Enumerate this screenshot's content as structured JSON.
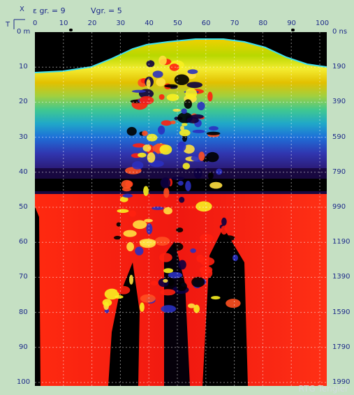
{
  "header": {
    "eps_label": "ε gr. = 9",
    "vgr_label": "Vgr. = 5",
    "corner_x": "X",
    "corner_t": "T"
  },
  "axes": {
    "top_ticks": [
      "0",
      "10",
      "20",
      "30",
      "40",
      "50",
      "60",
      "70",
      "80",
      "90",
      "100"
    ],
    "left_ticks": [
      "0 m",
      "10",
      "20",
      "30",
      "40",
      "50",
      "60",
      "70",
      "80",
      "90",
      "100"
    ],
    "right_ticks": [
      "0 ns",
      "190",
      "390",
      "590",
      "790",
      "990",
      "1190",
      "1390",
      "1590",
      "1790",
      "1990"
    ],
    "marker_positions": [
      12.5,
      90.5
    ]
  },
  "watermark": "RTG Tengler",
  "colors": {
    "background": "#c5e0c3",
    "label": "#1d2a8a",
    "surface_line": "#3ee0f0",
    "plot_background": "#000000"
  }
}
